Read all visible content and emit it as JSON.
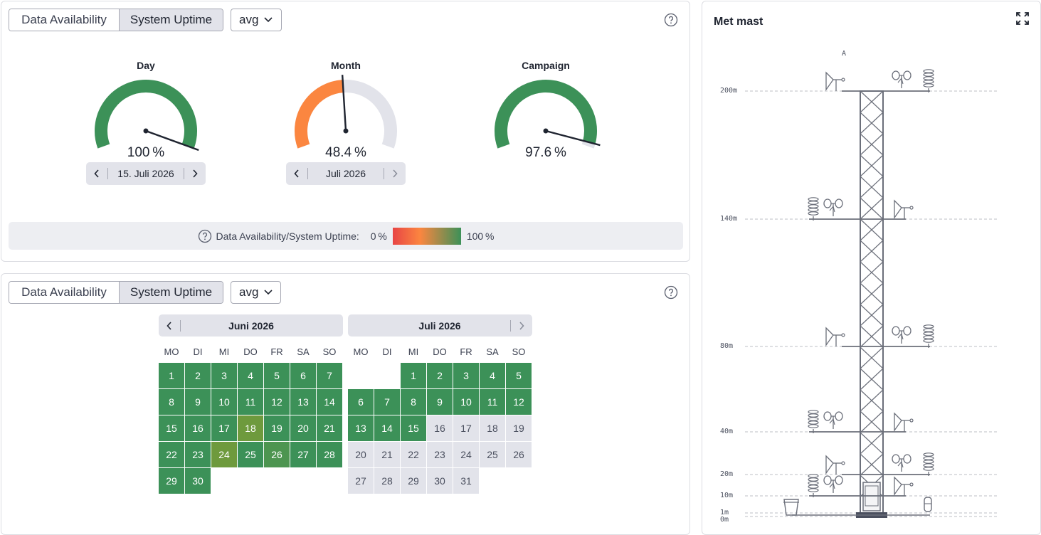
{
  "gauges_panel": {
    "toggle": {
      "data_availability": "Data Availability",
      "system_uptime": "System Uptime"
    },
    "aggregate": "avg",
    "gauges": [
      {
        "id": "day",
        "title": "Day",
        "value": 100,
        "value_text": "100 %",
        "color": "#3c9158",
        "date_label": "15. Juli 2026"
      },
      {
        "id": "month",
        "title": "Month",
        "value": 48.4,
        "value_text": "48.4 %",
        "color": "#fb8640",
        "date_label": "Juli 2026"
      },
      {
        "id": "campaign",
        "title": "Campaign",
        "value": 97.6,
        "value_text": "97.6 %",
        "color": "#3c9158"
      }
    ],
    "legend": {
      "label": "Data Availability/System Uptime:",
      "min": "0 %",
      "max": "100 %"
    }
  },
  "calendar_panel": {
    "toggle": {
      "data_availability": "Data Availability",
      "system_uptime": "System Uptime"
    },
    "aggregate": "avg",
    "weekdays": [
      "MO",
      "DI",
      "MI",
      "DO",
      "FR",
      "SA",
      "SO"
    ],
    "months": [
      {
        "title": "Juni 2026",
        "start_offset": 0,
        "days": 30,
        "status": {
          "18": "mid",
          "24": "mid",
          "26": "mid2"
        },
        "default_status": "ok"
      },
      {
        "title": "Juli 2026",
        "start_offset": 2,
        "days": 31,
        "status": {},
        "ok_until": 15,
        "default_status": "ok"
      }
    ]
  },
  "mast_panel": {
    "title": "Met mast",
    "top_label": "A",
    "heights": [
      "200m",
      "140m",
      "80m",
      "40m",
      "20m",
      "10m",
      "1m",
      "0m"
    ]
  }
}
